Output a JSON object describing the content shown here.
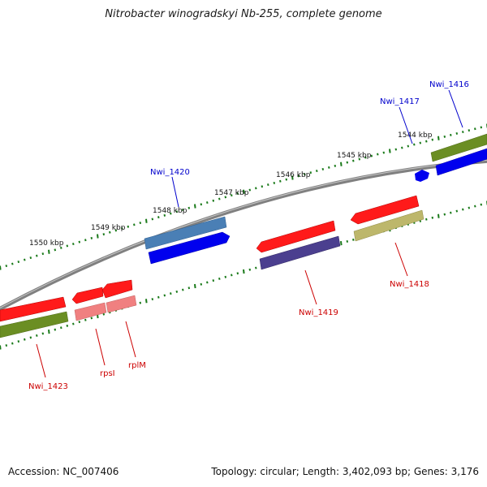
{
  "title": "Nitrobacter winogradskyi Nb-255, complete genome",
  "footer": {
    "accession": "Accession: NC_007406",
    "topology": "Topology: circular; Length: 3,402,093 bp; Genes: 3,176"
  },
  "scale_labels": [
    "1550 kbp",
    "1549 kbp",
    "1548 kbp",
    "1547 kbp",
    "1546 kbp",
    "1545 kbp",
    "1544 kbp"
  ],
  "gene_labels": {
    "nwi_1416": "Nwi_1416",
    "nwi_1417": "Nwi_1417",
    "nwi_1420": "Nwi_1420",
    "nwi_1418": "Nwi_1418",
    "nwi_1419": "Nwi_1419",
    "nwi_1423": "Nwi_1423",
    "rpsi": "rpsI",
    "rplm": "rplM"
  },
  "colors": {
    "forward_label": "#0000cc",
    "reverse_label": "#cc0000",
    "red": "#ff1a1a",
    "blue": "#0000ee",
    "olive": "#6b8e23",
    "steel": "#4a7fb5",
    "indigo": "#4b3f8f",
    "pink": "#f08080",
    "khaki": "#bdb76b",
    "tick": "#1a7a1a",
    "backbone": "#808080"
  }
}
